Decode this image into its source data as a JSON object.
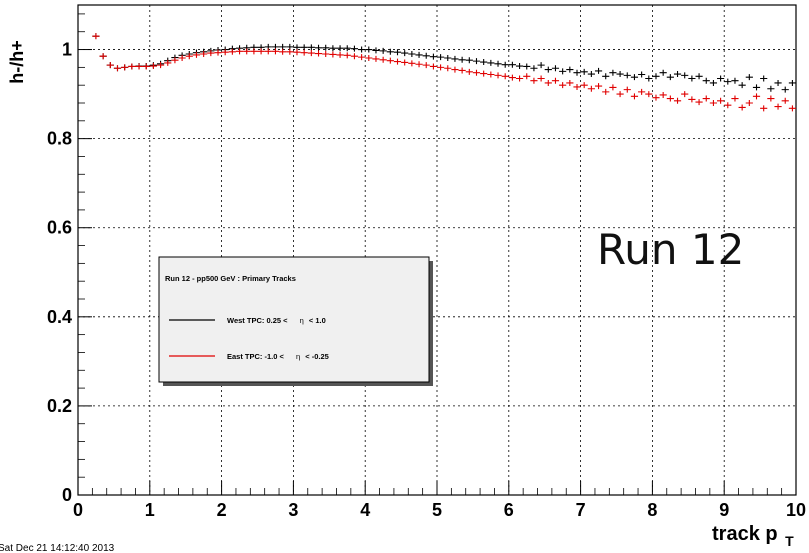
{
  "chart_data": {
    "type": "scatter",
    "ylabel": "h-/h+",
    "xlabel_main": "track p",
    "xlabel_sub": "T",
    "xlim": [
      0,
      10
    ],
    "ylim": [
      0,
      1.1
    ],
    "x_ticks": [
      "0",
      "1",
      "2",
      "3",
      "4",
      "5",
      "6",
      "7",
      "8",
      "9",
      "10"
    ],
    "y_ticks": [
      "0",
      "0.2",
      "0.4",
      "0.6",
      "0.8",
      "1"
    ],
    "grid": true,
    "legend": {
      "position": "center-left",
      "title": "Run 12 - pp500 GeV : Primary Tracks",
      "entries": [
        {
          "text_before": "West TPC: 0.25 <",
          "eta_symbol": "η",
          "text_after": "< 1.0",
          "color": "#000000"
        },
        {
          "text_before": "East TPC: -1.0 <",
          "eta_symbol": "η",
          "text_after": "< -0.25",
          "color": "#e00000"
        }
      ]
    },
    "annotation": "Run 12",
    "series": [
      {
        "color": "#000000",
        "x": [
          0.25,
          0.35,
          0.45,
          0.55,
          0.65,
          0.75,
          0.85,
          0.95,
          1.05,
          1.15,
          1.25,
          1.35,
          1.45,
          1.55,
          1.65,
          1.75,
          1.85,
          1.95,
          2.05,
          2.15,
          2.25,
          2.35,
          2.45,
          2.55,
          2.65,
          2.75,
          2.85,
          2.95,
          3.05,
          3.15,
          3.25,
          3.35,
          3.45,
          3.55,
          3.65,
          3.75,
          3.85,
          3.95,
          4.05,
          4.15,
          4.25,
          4.35,
          4.45,
          4.55,
          4.65,
          4.75,
          4.85,
          4.95,
          5.05,
          5.15,
          5.25,
          5.35,
          5.45,
          5.55,
          5.65,
          5.75,
          5.85,
          5.95,
          6.05,
          6.15,
          6.25,
          6.35,
          6.45,
          6.55,
          6.65,
          6.75,
          6.85,
          6.95,
          7.05,
          7.15,
          7.25,
          7.35,
          7.45,
          7.55,
          7.65,
          7.75,
          7.85,
          7.95,
          8.05,
          8.15,
          8.25,
          8.35,
          8.45,
          8.55,
          8.65,
          8.75,
          8.85,
          8.95,
          9.05,
          9.15,
          9.25,
          9.35,
          9.45,
          9.55,
          9.65,
          9.75,
          9.85,
          9.95
        ],
        "y": [
          1.03,
          0.985,
          0.965,
          0.958,
          0.96,
          0.962,
          0.963,
          0.963,
          0.965,
          0.968,
          0.975,
          0.982,
          0.987,
          0.99,
          0.993,
          0.995,
          0.997,
          0.999,
          1.0,
          1.002,
          1.003,
          1.004,
          1.005,
          1.005,
          1.006,
          1.006,
          1.006,
          1.006,
          1.005,
          1.005,
          1.005,
          1.004,
          1.004,
          1.003,
          1.003,
          1.003,
          1.002,
          1.0,
          1.0,
          0.998,
          0.997,
          0.995,
          0.994,
          0.992,
          0.99,
          0.988,
          0.986,
          0.984,
          0.983,
          0.981,
          0.979,
          0.977,
          0.976,
          0.974,
          0.972,
          0.97,
          0.968,
          0.966,
          0.966,
          0.963,
          0.962,
          0.958,
          0.965,
          0.955,
          0.958,
          0.951,
          0.955,
          0.948,
          0.95,
          0.945,
          0.952,
          0.94,
          0.948,
          0.945,
          0.942,
          0.938,
          0.944,
          0.935,
          0.94,
          0.948,
          0.938,
          0.945,
          0.942,
          0.935,
          0.94,
          0.93,
          0.925,
          0.935,
          0.928,
          0.93,
          0.92,
          0.938,
          0.915,
          0.935,
          0.912,
          0.925,
          0.91,
          0.925
        ]
      },
      {
        "color": "#e00000",
        "x": [
          0.25,
          0.35,
          0.45,
          0.55,
          0.65,
          0.75,
          0.85,
          0.95,
          1.05,
          1.15,
          1.25,
          1.35,
          1.45,
          1.55,
          1.65,
          1.75,
          1.85,
          1.95,
          2.05,
          2.15,
          2.25,
          2.35,
          2.45,
          2.55,
          2.65,
          2.75,
          2.85,
          2.95,
          3.05,
          3.15,
          3.25,
          3.35,
          3.45,
          3.55,
          3.65,
          3.75,
          3.85,
          3.95,
          4.05,
          4.15,
          4.25,
          4.35,
          4.45,
          4.55,
          4.65,
          4.75,
          4.85,
          4.95,
          5.05,
          5.15,
          5.25,
          5.35,
          5.45,
          5.55,
          5.65,
          5.75,
          5.85,
          5.95,
          6.05,
          6.15,
          6.25,
          6.35,
          6.45,
          6.55,
          6.65,
          6.75,
          6.85,
          6.95,
          7.05,
          7.15,
          7.25,
          7.35,
          7.45,
          7.55,
          7.65,
          7.75,
          7.85,
          7.95,
          8.05,
          8.15,
          8.25,
          8.35,
          8.45,
          8.55,
          8.65,
          8.75,
          8.85,
          8.95,
          9.05,
          9.15,
          9.25,
          9.35,
          9.45,
          9.55,
          9.65,
          9.75,
          9.85,
          9.95
        ],
        "y": [
          1.03,
          0.985,
          0.965,
          0.958,
          0.96,
          0.962,
          0.962,
          0.962,
          0.963,
          0.965,
          0.97,
          0.976,
          0.981,
          0.985,
          0.988,
          0.99,
          0.992,
          0.993,
          0.994,
          0.995,
          0.996,
          0.996,
          0.996,
          0.996,
          0.996,
          0.996,
          0.995,
          0.995,
          0.994,
          0.993,
          0.992,
          0.991,
          0.99,
          0.989,
          0.988,
          0.987,
          0.985,
          0.983,
          0.981,
          0.979,
          0.977,
          0.975,
          0.973,
          0.971,
          0.969,
          0.967,
          0.965,
          0.962,
          0.96,
          0.958,
          0.955,
          0.953,
          0.95,
          0.948,
          0.946,
          0.944,
          0.942,
          0.94,
          0.937,
          0.935,
          0.94,
          0.93,
          0.935,
          0.925,
          0.93,
          0.92,
          0.925,
          0.916,
          0.92,
          0.912,
          0.918,
          0.905,
          0.915,
          0.9,
          0.91,
          0.895,
          0.905,
          0.9,
          0.892,
          0.898,
          0.89,
          0.885,
          0.9,
          0.888,
          0.882,
          0.89,
          0.88,
          0.885,
          0.875,
          0.89,
          0.87,
          0.88,
          0.895,
          0.868,
          0.89,
          0.872,
          0.885,
          0.868
        ]
      }
    ]
  },
  "footer": {
    "timestamp": "Sat Dec 21 14:12:40 2013"
  }
}
